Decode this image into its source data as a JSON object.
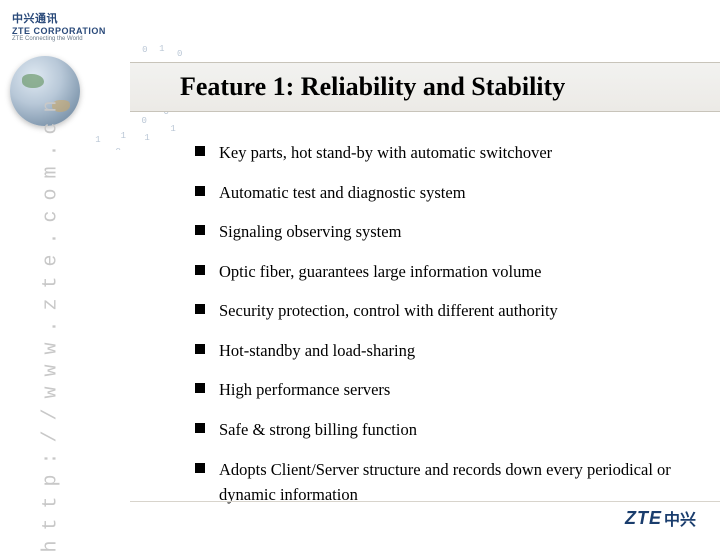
{
  "brand": {
    "top_cn": "中兴通讯",
    "top_en": "ZTE CORPORATION",
    "tagline": "ZTE Connecting the World",
    "footer_en": "ZTE",
    "footer_cn": "中兴"
  },
  "watermark": "http://www.zte.com.cn",
  "title": "Feature 1: Reliability and Stability",
  "bullets": [
    "Key parts, hot stand-by with automatic switchover",
    "Automatic test and diagnostic system",
    "Signaling observing system",
    "Optic fiber, guarantees large information volume",
    "Security protection,  control with different authority",
    "Hot-standby and load-sharing",
    "High performance servers",
    "Safe & strong billing function",
    "Adopts Client/Server structure and records down every periodical or dynamic information"
  ],
  "styling": {
    "slide_size": [
      720,
      540
    ],
    "background_color": "#ffffff",
    "title_bar_bg": "#eceae6",
    "title_bar_border": "#c8c4ba",
    "title_fontsize": 26,
    "title_color": "#000000",
    "bullet_fontsize": 16.5,
    "bullet_color": "#000000",
    "bullet_marker_size": 10,
    "bullet_marker_color": "#000000",
    "bullet_spacing": 14,
    "watermark_color": "#c8c8c8",
    "watermark_fontsize": 20,
    "brand_color": "#1a3d6d",
    "font_family_body": "Times New Roman",
    "font_family_brand": "Arial"
  },
  "binary_deco": [
    "0",
    "1",
    "0",
    "1",
    "0",
    "1",
    "0",
    "0",
    "1",
    "0",
    "1",
    "0",
    "1",
    "0",
    "0",
    "1",
    "1",
    "0",
    "1",
    "0",
    "1",
    "0",
    "1",
    "0",
    "1",
    "0",
    "0",
    "1",
    "1",
    "0"
  ]
}
